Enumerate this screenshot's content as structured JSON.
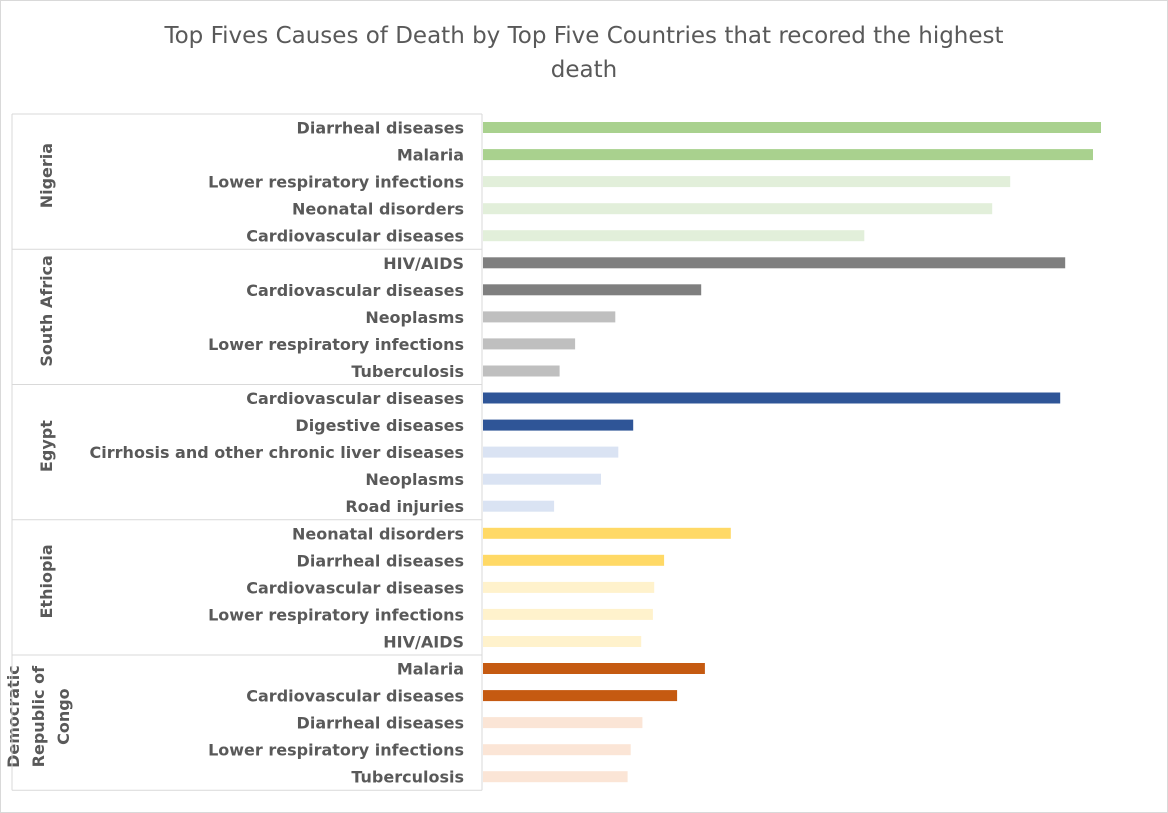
{
  "chart_data": {
    "type": "bar",
    "orientation": "horizontal",
    "title_lines": [
      "Top Fives Causes of Death by Top Five Countries that recored the highest",
      "death"
    ],
    "xlabel": "",
    "ylabel": "",
    "xlim": [
      0,
      100
    ],
    "grid": false,
    "legend": "none",
    "groups": [
      {
        "label_lines": [
          "Nigeria"
        ],
        "colors": {
          "top": "#a9d18e",
          "rest": "#e2efda"
        },
        "bars": [
          {
            "label": "Diarrheal diseases",
            "value": 100,
            "shade": "top"
          },
          {
            "label": "Malaria",
            "value": 98.7,
            "shade": "top"
          },
          {
            "label": "Lower respiratory infections",
            "value": 85.3,
            "shade": "rest"
          },
          {
            "label": "Neonatal disorders",
            "value": 82.4,
            "shade": "rest"
          },
          {
            "label": "Cardiovascular diseases",
            "value": 61.7,
            "shade": "rest"
          }
        ]
      },
      {
        "label_lines": [
          "South Africa"
        ],
        "colors": {
          "top": "#7f7f7f",
          "rest": "#bfbfbf"
        },
        "bars": [
          {
            "label": "HIV/AIDS",
            "value": 94.2,
            "shade": "top"
          },
          {
            "label": "Cardiovascular diseases",
            "value": 35.3,
            "shade": "top"
          },
          {
            "label": "Neoplasms",
            "value": 21.4,
            "shade": "rest"
          },
          {
            "label": "Lower respiratory infections",
            "value": 14.9,
            "shade": "rest"
          },
          {
            "label": "Tuberculosis",
            "value": 12.4,
            "shade": "rest"
          }
        ]
      },
      {
        "label_lines": [
          "Egypt"
        ],
        "colors": {
          "top": "#2f5597",
          "rest": "#dae3f3"
        },
        "bars": [
          {
            "label": "Cardiovascular diseases",
            "value": 93.4,
            "shade": "top"
          },
          {
            "label": "Digestive diseases",
            "value": 24.3,
            "shade": "top"
          },
          {
            "label": "Cirrhosis and other chronic liver diseases",
            "value": 21.9,
            "shade": "rest"
          },
          {
            "label": "Neoplasms",
            "value": 19.1,
            "shade": "rest"
          },
          {
            "label": "Road injuries",
            "value": 11.5,
            "shade": "rest"
          }
        ]
      },
      {
        "label_lines": [
          "Ethiopia"
        ],
        "colors": {
          "top": "#ffd966",
          "rest": "#fff2cc"
        },
        "bars": [
          {
            "label": "Neonatal disorders",
            "value": 40.1,
            "shade": "top"
          },
          {
            "label": "Diarrheal diseases",
            "value": 29.3,
            "shade": "top"
          },
          {
            "label": "Cardiovascular diseases",
            "value": 27.7,
            "shade": "rest"
          },
          {
            "label": "Lower respiratory infections",
            "value": 27.5,
            "shade": "rest"
          },
          {
            "label": "HIV/AIDS",
            "value": 25.6,
            "shade": "rest"
          }
        ]
      },
      {
        "label_lines": [
          "Democratic",
          "Republic of",
          "Congo"
        ],
        "colors": {
          "top": "#c55a11",
          "rest": "#fbe5d6"
        },
        "bars": [
          {
            "label": "Malaria",
            "value": 35.9,
            "shade": "top"
          },
          {
            "label": "Cardiovascular diseases",
            "value": 31.4,
            "shade": "top"
          },
          {
            "label": "Diarrheal diseases",
            "value": 25.8,
            "shade": "rest"
          },
          {
            "label": "Lower respiratory infections",
            "value": 23.9,
            "shade": "rest"
          },
          {
            "label": "Tuberculosis",
            "value": 23.4,
            "shade": "rest"
          }
        ]
      }
    ]
  }
}
